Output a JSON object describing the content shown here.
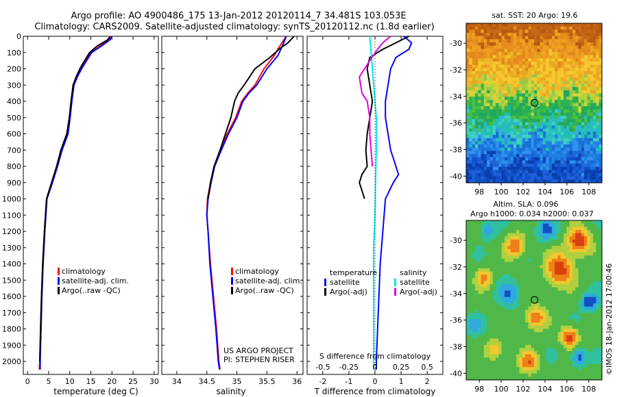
{
  "header": {
    "line1": "Argo profile: AO 4900486_175 13-Jan-2012 20120114_7 34.481S 103.053E",
    "line2": "Climatology: CARS2009. Satellite-adjusted climatology: synTS_20120112.nc (1.8d earlier)"
  },
  "colors": {
    "climatology": "#ff0000",
    "satellite": "#0000ff",
    "argo": "#000000",
    "sal_satellite": "#00e5e5",
    "sal_argo": "#e000e0"
  },
  "chart_data": [
    {
      "type": "line",
      "id": "temperature",
      "xlabel": "temperature (deg C)",
      "ylabel": "",
      "xlim": [
        -1,
        31
      ],
      "ylim": [
        2080,
        0
      ],
      "xticks": [
        0,
        5,
        10,
        15,
        20,
        25,
        30
      ],
      "yticks": [
        0,
        100,
        200,
        300,
        400,
        500,
        600,
        700,
        800,
        900,
        1000,
        1100,
        1200,
        1300,
        1400,
        1500,
        1600,
        1700,
        1800,
        1900,
        2000
      ],
      "legend": [
        "climatology",
        "satellite-adj. clim.",
        "Argo(..raw -QC)"
      ],
      "series": [
        {
          "name": "climatology",
          "color_key": "climatology",
          "x": [
            19.8,
            19.3,
            17.2,
            15.0,
            13.8,
            12.6,
            11.6,
            10.9,
            10.4,
            10.0,
            9.4,
            8.0,
            7.0,
            5.8,
            4.5,
            4.0,
            3.6,
            3.3,
            3.1,
            3.0,
            2.9,
            2.8
          ],
          "y": [
            0,
            20,
            60,
            100,
            150,
            200,
            250,
            300,
            400,
            500,
            600,
            700,
            800,
            900,
            1000,
            1200,
            1400,
            1600,
            1800,
            1900,
            2000,
            2050
          ]
        },
        {
          "name": "satellite-adj. clim.",
          "color_key": "satellite",
          "x": [
            20.0,
            19.6,
            17.5,
            15.2,
            14.0,
            12.8,
            11.8,
            11.0,
            10.5,
            10.1,
            9.6,
            8.2,
            7.1,
            5.9,
            4.6,
            4.1,
            3.7,
            3.4,
            3.2,
            3.1,
            3.0,
            3.0
          ],
          "y": [
            0,
            20,
            60,
            100,
            150,
            200,
            250,
            300,
            400,
            500,
            600,
            700,
            800,
            900,
            1000,
            1200,
            1400,
            1600,
            1800,
            1900,
            2000,
            2050
          ]
        },
        {
          "name": "Argo(..raw -QC)",
          "color_key": "argo",
          "x": [
            19.5,
            18.8,
            16.5,
            14.7,
            13.5,
            12.4,
            11.5,
            10.8,
            10.3,
            9.9,
            9.3,
            7.9,
            6.9,
            5.7,
            4.5,
            4.0,
            3.6,
            3.3,
            3.1,
            3.0,
            2.9
          ],
          "y": [
            5,
            25,
            60,
            100,
            150,
            200,
            250,
            300,
            400,
            500,
            600,
            700,
            800,
            900,
            1000,
            1200,
            1400,
            1600,
            1800,
            1900,
            2000
          ]
        }
      ]
    },
    {
      "type": "line",
      "id": "salinity",
      "xlabel": "salinity",
      "ylabel": "",
      "xlim": [
        33.75,
        36.1
      ],
      "ylim": [
        2080,
        0
      ],
      "xticks": [
        34,
        34.5,
        35,
        35.5,
        36
      ],
      "yticks": [],
      "legend": [
        "climatology",
        "satellite-adj. clim.",
        "Argo(..raw -QC)"
      ],
      "series": [
        {
          "name": "climatology",
          "color_key": "climatology",
          "x": [
            35.82,
            35.75,
            35.68,
            35.62,
            35.45,
            35.3,
            35.18,
            35.08,
            34.98,
            34.84,
            34.72,
            34.62,
            34.56,
            34.51,
            34.5,
            34.52,
            34.56,
            34.61,
            34.66,
            34.7,
            34.72
          ],
          "y": [
            0,
            40,
            80,
            120,
            200,
            300,
            350,
            400,
            500,
            600,
            700,
            800,
            900,
            1000,
            1100,
            1200,
            1400,
            1600,
            1800,
            2000,
            2050
          ]
        },
        {
          "name": "satellite-adj. clim.",
          "color_key": "satellite",
          "x": [
            35.82,
            35.78,
            35.73,
            35.68,
            35.5,
            35.33,
            35.2,
            35.1,
            35.0,
            34.86,
            34.74,
            34.63,
            34.57,
            34.52,
            34.5,
            34.52,
            34.55,
            34.6,
            34.65,
            34.69,
            34.71
          ],
          "y": [
            0,
            40,
            80,
            120,
            200,
            300,
            350,
            400,
            500,
            600,
            700,
            800,
            900,
            1000,
            1100,
            1200,
            1400,
            1600,
            1800,
            2000,
            2050
          ]
        },
        {
          "name": "Argo(..raw -QC)",
          "color_key": "argo",
          "x": [
            35.95,
            35.85,
            35.7,
            35.55,
            35.3,
            35.12,
            35.02,
            34.96,
            34.9,
            34.81,
            34.72,
            34.62,
            34.56,
            34.52
          ],
          "y": [
            0,
            40,
            80,
            130,
            200,
            300,
            350,
            400,
            500,
            600,
            700,
            800,
            900,
            1000
          ]
        }
      ]
    },
    {
      "type": "line",
      "id": "difference",
      "xlabel": "T difference from climatology",
      "xlabel2": "S difference from climatology",
      "ylabel": "",
      "xlim": [
        -2.6,
        2.6
      ],
      "ylim": [
        2080,
        0
      ],
      "xticks": [
        -2,
        -1,
        0,
        1,
        2
      ],
      "xticks2": [
        "-0.5",
        "-0.25",
        "0",
        "0.25",
        "0.5"
      ],
      "legend_groups": [
        {
          "title": "temperature",
          "entries": [
            "satellite",
            "Argo(-adj)"
          ]
        },
        {
          "title": "salinity",
          "entries": [
            "satellite",
            "Argo(-adj)"
          ]
        }
      ],
      "series": [
        {
          "name": "T satellite",
          "color_key": "satellite",
          "x": [
            1.1,
            1.4,
            1.3,
            0.8,
            0.6,
            0.5,
            0.4,
            0.4,
            0.5,
            0.6,
            0.7,
            0.8,
            0.9,
            0.7,
            0.4,
            0.3,
            0.2,
            0.15,
            0.1,
            0.05,
            0.05
          ],
          "y": [
            0,
            40,
            80,
            130,
            200,
            300,
            400,
            500,
            600,
            700,
            750,
            800,
            850,
            900,
            1000,
            1200,
            1400,
            1600,
            1800,
            2000,
            2050
          ]
        },
        {
          "name": "T Argo(-adj)",
          "color_key": "argo",
          "x": [
            1.3,
            0.8,
            0.3,
            -0.2,
            -0.3,
            -0.2,
            -0.1,
            -0.2,
            -0.3,
            -0.35,
            -0.3,
            -0.5,
            -0.6,
            -0.5,
            -0.4
          ],
          "y": [
            0,
            40,
            80,
            130,
            200,
            300,
            400,
            500,
            600,
            700,
            800,
            850,
            900,
            950,
            1000
          ]
        },
        {
          "name": "S satellite",
          "color_key": "sal_satellite",
          "x": [
            -0.2,
            -0.15,
            -0.1,
            -0.05,
            0.0,
            0.05,
            0.05,
            0.02,
            0.0,
            -0.05,
            -0.05,
            -0.05,
            -0.05,
            -0.05
          ],
          "y": [
            0,
            100,
            200,
            300,
            400,
            500,
            700,
            900,
            1100,
            1300,
            1500,
            1700,
            1900,
            2050
          ]
        },
        {
          "name": "S Argo(-adj)",
          "color_key": "sal_argo",
          "x": [
            0.6,
            0.3,
            0.1,
            -0.2,
            -0.6,
            -0.5,
            -0.3,
            -0.2,
            -0.2,
            -0.15,
            -0.1
          ],
          "y": [
            0,
            40,
            80,
            150,
            250,
            350,
            400,
            500,
            600,
            700,
            800
          ]
        }
      ]
    },
    {
      "type": "heatmap",
      "id": "sst_map",
      "title": "sat. SST: 20 Argo: 19.6",
      "xticks": [
        98,
        100,
        102,
        104,
        106,
        108
      ],
      "yticks": [
        -30,
        -32,
        -34,
        -36,
        -38,
        -40
      ],
      "xlim": [
        96.8,
        109.2
      ],
      "ylim": [
        -40.5,
        -28.5
      ],
      "marker": {
        "lon": 103.05,
        "lat": -34.48
      }
    },
    {
      "type": "heatmap",
      "id": "sla_map",
      "title": "Altim. SLA: 0.096",
      "subtitle": "Argo h1000: 0.034 h2000: 0.037",
      "xticks": [
        98,
        100,
        102,
        104,
        106,
        108
      ],
      "yticks": [
        -30,
        -32,
        -34,
        -36,
        -38,
        -40
      ],
      "xlim": [
        96.8,
        109.2
      ],
      "ylim": [
        -40.5,
        -28.5
      ],
      "marker": {
        "lon": 103.05,
        "lat": -34.48
      }
    }
  ],
  "panel_text": {
    "us_argo": "US ARGO PROJECT",
    "pi": "PI: STEPHEN RISER"
  },
  "footer": {
    "imos": "©IMOS 18-Jan-2012 17:00:46"
  }
}
